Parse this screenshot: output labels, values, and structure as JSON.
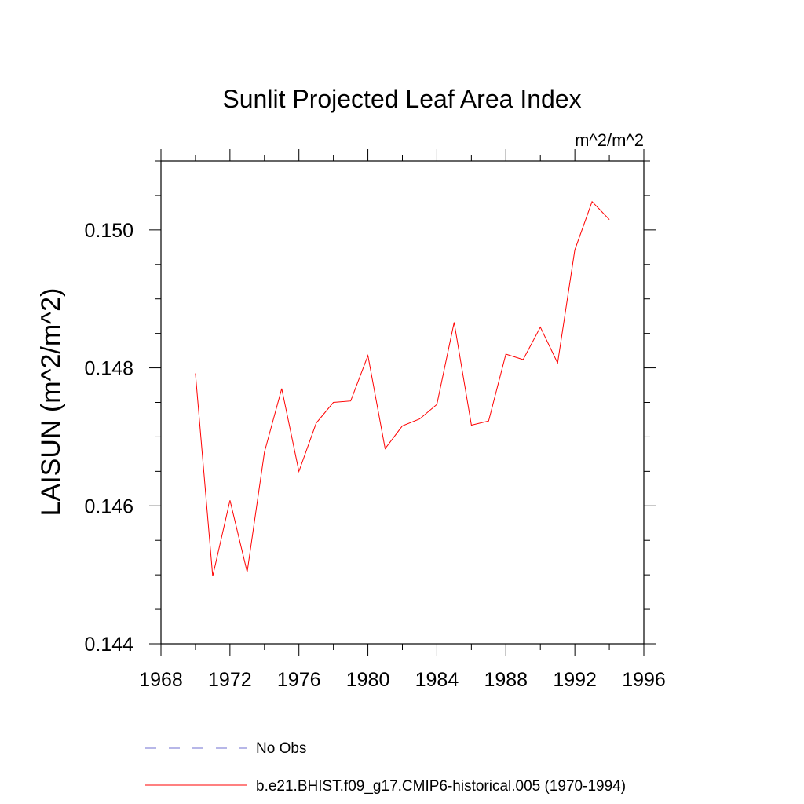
{
  "chart_data": {
    "type": "line",
    "title": "Sunlit Projected Leaf Area Index",
    "units_label": "m^2/m^2",
    "ylabel": "LAISUN  (m^2/m^2)",
    "xlabel": "",
    "xlim": [
      1968,
      1996
    ],
    "ylim": [
      0.144,
      0.151
    ],
    "x_ticks": [
      "1968",
      "1972",
      "1976",
      "1980",
      "1984",
      "1988",
      "1992",
      "1996"
    ],
    "y_ticks": [
      "0.144",
      "0.146",
      "0.148",
      "0.150"
    ],
    "series": [
      {
        "name": "b.e21.BHIST.f09_g17.CMIP6-historical.005 (1970-1994)",
        "color": "#ff0000",
        "style": "solid",
        "x": [
          1970,
          1971,
          1972,
          1973,
          1974,
          1975,
          1976,
          1977,
          1978,
          1979,
          1980,
          1981,
          1982,
          1983,
          1984,
          1985,
          1986,
          1987,
          1988,
          1989,
          1990,
          1991,
          1992,
          1993,
          1994
        ],
        "y": [
          0.14792,
          0.14498,
          0.14608,
          0.14504,
          0.14678,
          0.1477,
          0.1465,
          0.1472,
          0.1475,
          0.14752,
          0.14818,
          0.14683,
          0.14716,
          0.14726,
          0.14747,
          0.14866,
          0.14717,
          0.14723,
          0.1482,
          0.14812,
          0.14859,
          0.14807,
          0.14971,
          0.15041,
          0.15015
        ]
      }
    ],
    "legend": [
      {
        "label": "No Obs",
        "color": "#6f6fd0",
        "style": "dashed"
      },
      {
        "label": "b.e21.BHIST.f09_g17.CMIP6-historical.005 (1970-1994)",
        "color": "#ff0000",
        "style": "solid"
      }
    ],
    "legend_position": "bottom",
    "grid": false
  }
}
